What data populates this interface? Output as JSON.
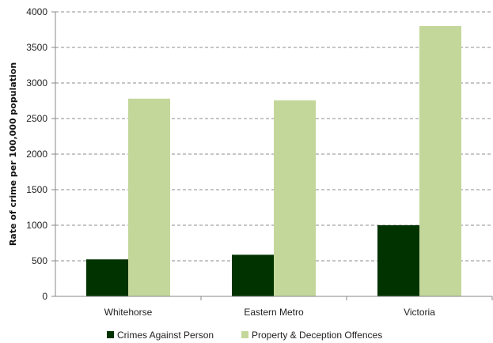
{
  "chart_data": {
    "type": "bar",
    "title": "",
    "xlabel": "",
    "ylabel": "Rate of crime per 100,000 population",
    "categories": [
      "Whitehorse",
      "Eastern Metro",
      "Victoria"
    ],
    "series": [
      {
        "name": "Crimes Against Person",
        "color": "#003300",
        "values": [
          520,
          585,
          1000
        ]
      },
      {
        "name": "Property & Deception Offences",
        "color": "#c4d79b",
        "values": [
          2780,
          2755,
          3800
        ]
      }
    ],
    "ylim": [
      0,
      4000
    ],
    "yticks": [
      0,
      500,
      1000,
      1500,
      2000,
      2500,
      3000,
      3500,
      4000
    ],
    "grid": true,
    "grid_style": "dashed",
    "legend_position": "bottom"
  }
}
